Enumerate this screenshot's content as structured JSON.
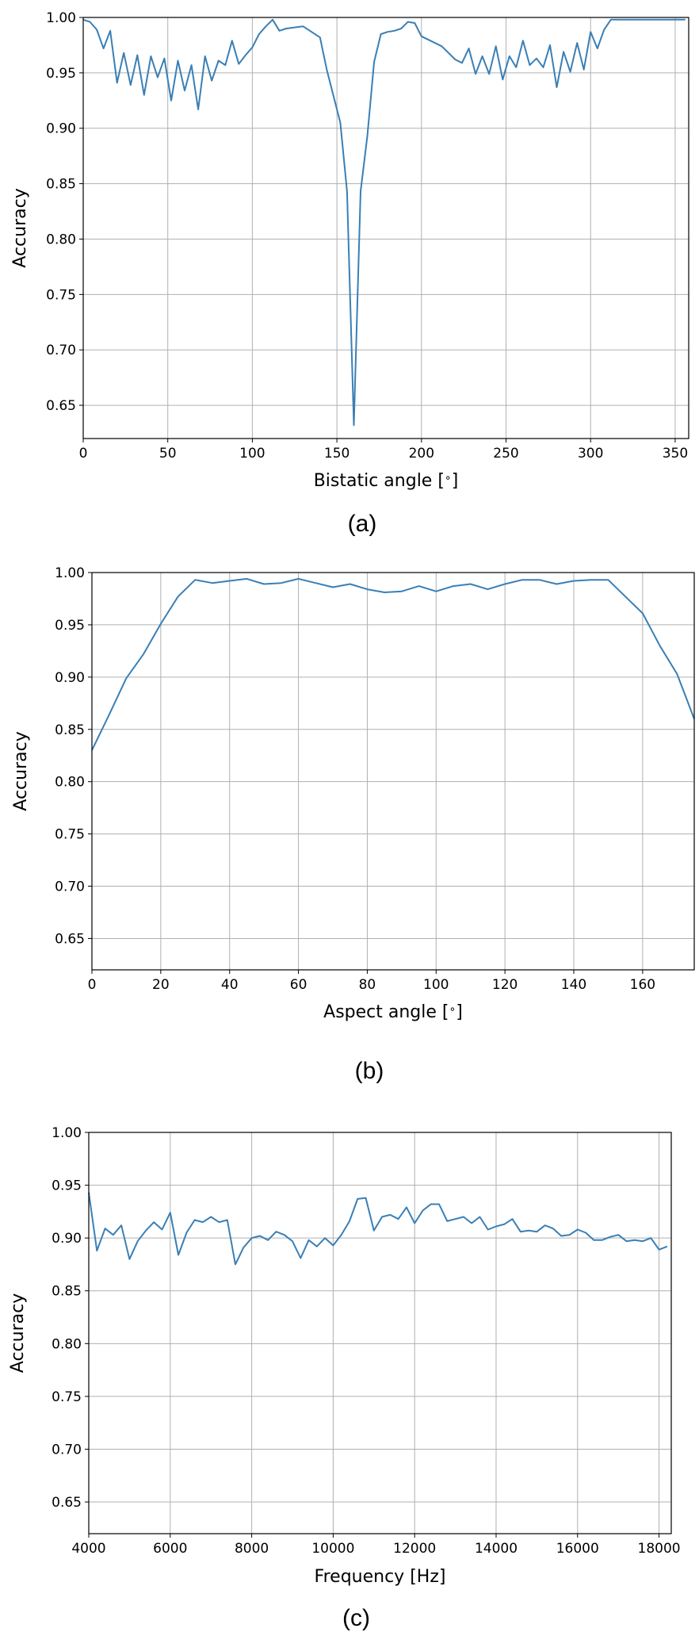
{
  "chart_data": [
    {
      "type": "line",
      "panel": "(a)",
      "xlabel": "Bistatic angle [$^\\circ$]",
      "xlabel_parts": [
        "Bistatic angle [",
        "∘",
        "]"
      ],
      "ylabel": "Accuracy",
      "xlim": [
        0,
        358
      ],
      "ylim": [
        0.62,
        1.0
      ],
      "xticks": [
        0,
        50,
        100,
        150,
        200,
        250,
        300,
        350
      ],
      "yticks": [
        0.65,
        0.7,
        0.75,
        0.8,
        0.85,
        0.9,
        0.95,
        1.0
      ],
      "ytick_labels": [
        "0.65",
        "0.70",
        "0.75",
        "0.80",
        "0.85",
        "0.90",
        "0.95",
        "1.00"
      ],
      "grid": true,
      "line_color": "#3a7fb5",
      "series": [
        {
          "x": [
            0,
            4,
            8,
            12,
            16,
            20,
            24,
            28,
            32,
            36,
            40,
            44,
            48,
            52,
            56,
            60,
            64,
            68,
            72,
            76,
            80,
            84,
            88,
            92,
            96,
            100,
            104,
            108,
            112,
            116,
            120,
            130,
            140,
            144,
            152,
            156,
            160,
            164,
            168,
            172,
            176,
            180,
            184,
            188,
            192,
            196,
            200,
            212,
            220,
            224,
            228,
            232,
            236,
            240,
            244,
            248,
            252,
            256,
            260,
            264,
            268,
            272,
            276,
            280,
            284,
            288,
            292,
            296,
            300,
            304,
            308,
            312,
            316,
            320,
            324,
            328,
            332,
            336,
            340,
            344,
            348,
            352,
            356
          ],
          "y": [
            0.998,
            0.996,
            0.989,
            0.972,
            0.988,
            0.941,
            0.968,
            0.939,
            0.966,
            0.93,
            0.965,
            0.946,
            0.963,
            0.925,
            0.961,
            0.934,
            0.957,
            0.917,
            0.965,
            0.943,
            0.961,
            0.957,
            0.979,
            0.958,
            0.966,
            0.973,
            0.985,
            0.992,
            0.998,
            0.988,
            0.99,
            0.992,
            0.982,
            0.953,
            0.905,
            0.843,
            0.632,
            0.843,
            0.893,
            0.96,
            0.985,
            0.987,
            0.988,
            0.99,
            0.996,
            0.995,
            0.983,
            0.974,
            0.962,
            0.959,
            0.972,
            0.949,
            0.965,
            0.949,
            0.974,
            0.944,
            0.965,
            0.955,
            0.979,
            0.957,
            0.963,
            0.955,
            0.975,
            0.937,
            0.969,
            0.951,
            0.977,
            0.953,
            0.987,
            0.972,
            0.989,
            0.998,
            0.998,
            0.998,
            0.998,
            0.998,
            0.998,
            0.998,
            0.998,
            0.998,
            0.998,
            0.998,
            0.998
          ]
        }
      ]
    },
    {
      "type": "line",
      "panel": "(b)",
      "xlabel": "Aspect angle [$^\\circ$]",
      "xlabel_parts": [
        "Aspect angle [",
        "∘",
        "]"
      ],
      "ylabel": "Accuracy",
      "xlim": [
        0,
        175
      ],
      "ylim": [
        0.62,
        1.0
      ],
      "xticks": [
        0,
        20,
        40,
        60,
        80,
        100,
        120,
        140,
        160
      ],
      "yticks": [
        0.65,
        0.7,
        0.75,
        0.8,
        0.85,
        0.9,
        0.95,
        1.0
      ],
      "ytick_labels": [
        "0.65",
        "0.70",
        "0.75",
        "0.80",
        "0.85",
        "0.90",
        "0.95",
        "1.00"
      ],
      "grid": true,
      "line_color": "#3a7fb5",
      "series": [
        {
          "x": [
            0,
            5,
            10,
            15,
            20,
            25,
            30,
            35,
            40,
            45,
            50,
            55,
            60,
            65,
            70,
            75,
            80,
            85,
            90,
            95,
            100,
            105,
            110,
            115,
            120,
            125,
            130,
            135,
            140,
            145,
            150,
            155,
            160,
            165,
            170,
            175
          ],
          "y": [
            0.83,
            0.864,
            0.899,
            0.922,
            0.951,
            0.977,
            0.993,
            0.99,
            0.992,
            0.994,
            0.989,
            0.99,
            0.994,
            0.99,
            0.986,
            0.989,
            0.984,
            0.981,
            0.982,
            0.987,
            0.982,
            0.987,
            0.989,
            0.984,
            0.989,
            0.993,
            0.993,
            0.989,
            0.992,
            0.993,
            0.993,
            0.977,
            0.961,
            0.93,
            0.903,
            0.86
          ]
        }
      ]
    },
    {
      "type": "line",
      "panel": "(c)",
      "xlabel": "Frequency [Hz]",
      "xlabel_parts": [
        "Frequency [Hz]",
        "",
        ""
      ],
      "ylabel": "Accuracy",
      "xlim": [
        4000,
        18300
      ],
      "ylim": [
        0.62,
        1.0
      ],
      "xticks": [
        4000,
        6000,
        8000,
        10000,
        12000,
        14000,
        16000,
        18000
      ],
      "yticks": [
        0.65,
        0.7,
        0.75,
        0.8,
        0.85,
        0.9,
        0.95,
        1.0
      ],
      "ytick_labels": [
        "0.65",
        "0.70",
        "0.75",
        "0.80",
        "0.85",
        "0.90",
        "0.95",
        "1.00"
      ],
      "grid": true,
      "line_color": "#3a7fb5",
      "series": [
        {
          "x": [
            4000,
            4200,
            4400,
            4600,
            4800,
            5000,
            5200,
            5400,
            5600,
            5800,
            6000,
            6200,
            6400,
            6600,
            6800,
            7000,
            7200,
            7400,
            7600,
            7800,
            8000,
            8200,
            8400,
            8600,
            8800,
            9000,
            9200,
            9400,
            9600,
            9800,
            10000,
            10200,
            10400,
            10600,
            10800,
            11000,
            11200,
            11400,
            11600,
            11800,
            12000,
            12200,
            12400,
            12600,
            12800,
            13000,
            13200,
            13400,
            13600,
            13800,
            14000,
            14200,
            14400,
            14600,
            14800,
            15000,
            15200,
            15400,
            15600,
            15800,
            16000,
            16200,
            16400,
            16600,
            16800,
            17000,
            17200,
            17400,
            17600,
            17800,
            18000,
            18200
          ],
          "y": [
            0.943,
            0.888,
            0.909,
            0.903,
            0.912,
            0.88,
            0.897,
            0.907,
            0.915,
            0.908,
            0.924,
            0.884,
            0.905,
            0.917,
            0.915,
            0.92,
            0.915,
            0.917,
            0.875,
            0.891,
            0.9,
            0.902,
            0.898,
            0.906,
            0.903,
            0.897,
            0.881,
            0.898,
            0.892,
            0.9,
            0.893,
            0.903,
            0.916,
            0.937,
            0.938,
            0.907,
            0.92,
            0.922,
            0.918,
            0.929,
            0.914,
            0.926,
            0.932,
            0.932,
            0.916,
            0.918,
            0.92,
            0.914,
            0.92,
            0.908,
            0.911,
            0.913,
            0.918,
            0.906,
            0.907,
            0.906,
            0.912,
            0.909,
            0.902,
            0.903,
            0.908,
            0.905,
            0.898,
            0.898,
            0.901,
            0.903,
            0.897,
            0.898,
            0.897,
            0.9,
            0.889,
            0.892
          ]
        }
      ]
    }
  ],
  "captions": [
    "(a)",
    "(b)",
    "(c)"
  ]
}
